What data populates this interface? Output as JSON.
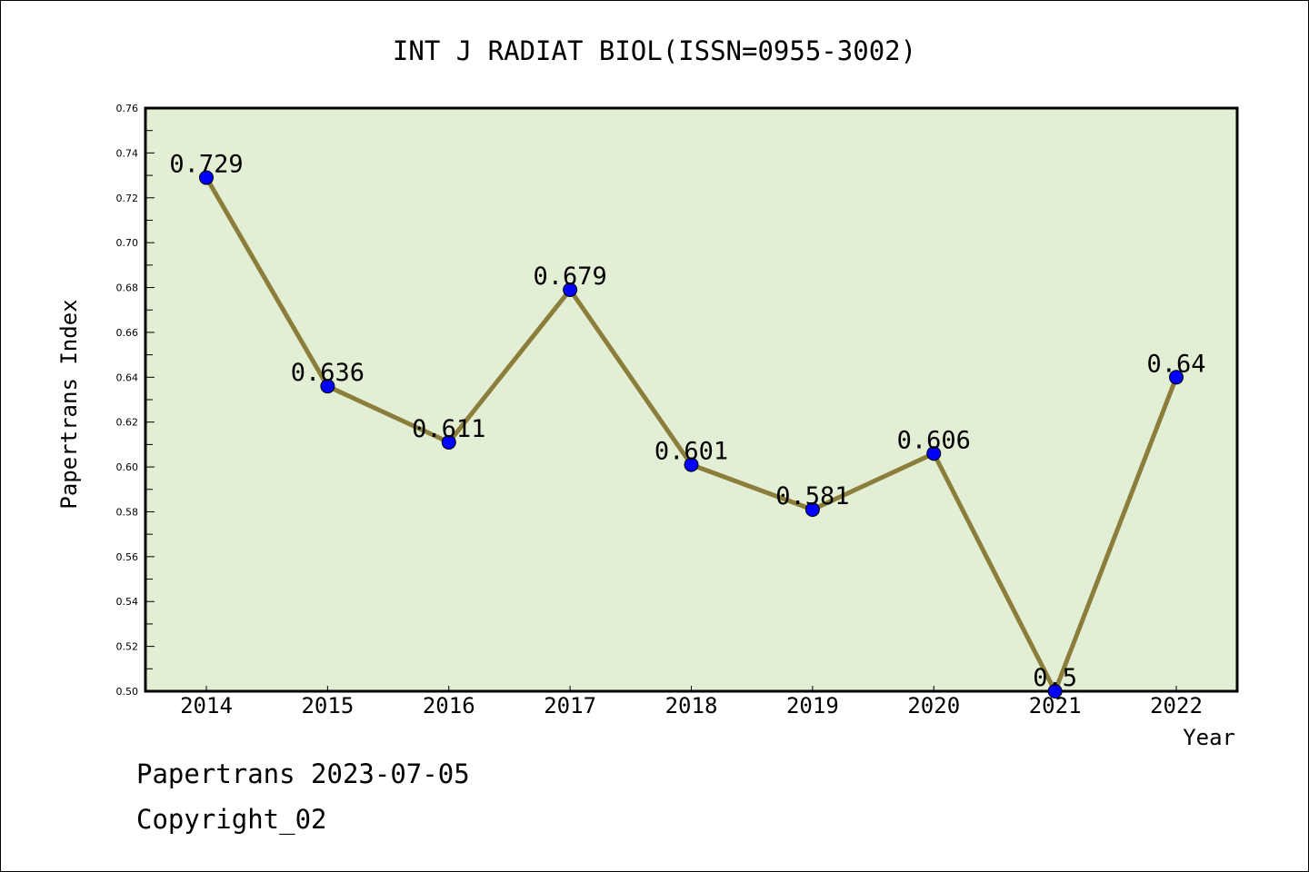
{
  "chart_data": {
    "type": "line",
    "title": "INT J RADIAT BIOL(ISSN=0955-3002)",
    "xlabel": "Year",
    "ylabel": "Papertrans Index",
    "categories": [
      "2014",
      "2015",
      "2016",
      "2017",
      "2018",
      "2019",
      "2020",
      "2021",
      "2022"
    ],
    "values": [
      0.729,
      0.636,
      0.611,
      0.679,
      0.601,
      0.581,
      0.606,
      0.5,
      0.64
    ],
    "data_labels": [
      "0.729",
      "0.636",
      "0.611",
      "0.679",
      "0.601",
      "0.581",
      "0.606",
      "0.5",
      "0.64"
    ],
    "ylim": [
      0.5,
      0.76
    ],
    "yticks": [
      "0.50",
      "0.52",
      "0.54",
      "0.56",
      "0.58",
      "0.60",
      "0.62",
      "0.64",
      "0.66",
      "0.68",
      "0.70",
      "0.72",
      "0.74",
      "0.76"
    ],
    "grid": false,
    "colors": {
      "background": "#e2efd5",
      "line": "#8b7d3a",
      "marker": "#0000ff"
    }
  },
  "footer": {
    "line1": "Papertrans 2023-07-05",
    "line2": "Copyright_02"
  }
}
